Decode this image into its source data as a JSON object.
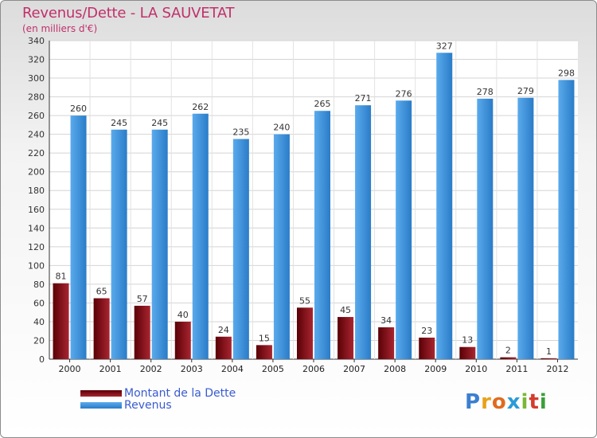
{
  "title": "Revenus/Dette - LA SAUVETAT",
  "subtitle": "(en milliers d'€)",
  "colors": {
    "dette_dark": "#5a0006",
    "dette_light": "#a82530",
    "revenus_dark": "#2a7cc8",
    "revenus_light": "#5aaaec",
    "title": "#c0306a",
    "legend_text": "#3a5bd0"
  },
  "chart_data": {
    "type": "bar",
    "categories": [
      "2000",
      "2001",
      "2002",
      "2003",
      "2004",
      "2005",
      "2006",
      "2007",
      "2008",
      "2009",
      "2010",
      "2011",
      "2012"
    ],
    "series": [
      {
        "name": "Montant de la Dette",
        "values": [
          81,
          65,
          57,
          40,
          24,
          15,
          55,
          45,
          34,
          23,
          13,
          2,
          1
        ]
      },
      {
        "name": "Revenus",
        "values": [
          260,
          245,
          245,
          262,
          235,
          240,
          265,
          271,
          276,
          327,
          278,
          279,
          298
        ]
      }
    ],
    "ylim": [
      0,
      340
    ],
    "yticks": [
      0,
      20,
      40,
      60,
      80,
      100,
      120,
      140,
      160,
      180,
      200,
      220,
      240,
      260,
      280,
      300,
      320,
      340
    ],
    "grid": true,
    "legend_position": "bottom-left"
  },
  "legend": {
    "items": [
      {
        "label": "Montant de la Dette"
      },
      {
        "label": "Revenus"
      }
    ]
  },
  "logo": {
    "letters": [
      "P",
      "r",
      "o",
      "x",
      "i",
      "t",
      "i"
    ],
    "colors": [
      "#3b7fd0",
      "#e8a21a",
      "#e06b20",
      "#2a9bd8",
      "#7bb735",
      "#d43c2c",
      "#3b9e3b"
    ]
  }
}
